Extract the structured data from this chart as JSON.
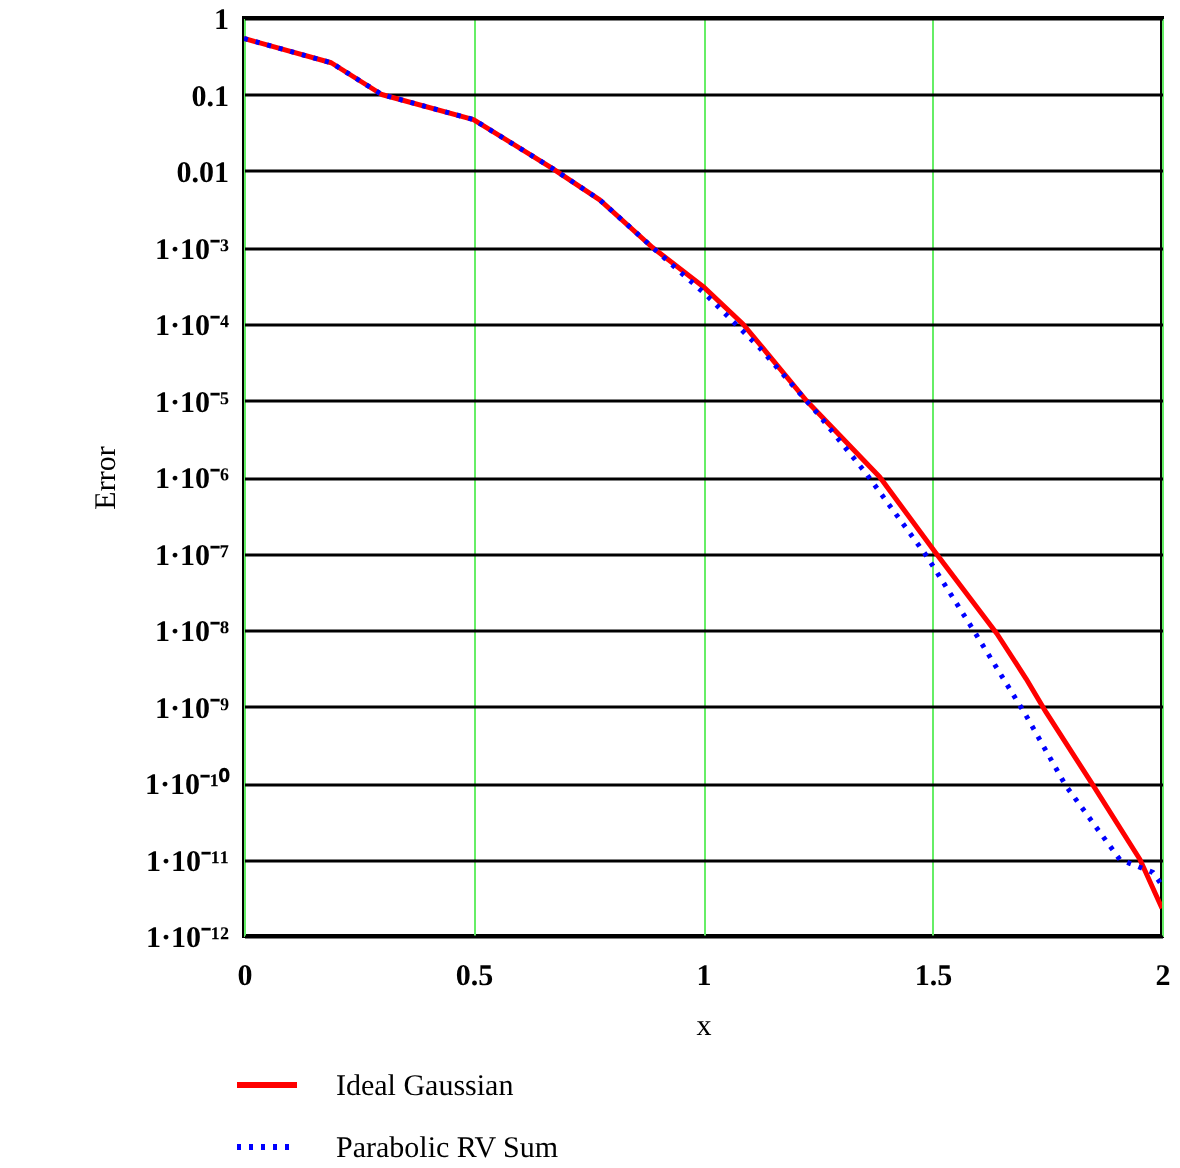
{
  "chart_data": {
    "type": "line",
    "xlabel": "x",
    "ylabel": "Error",
    "xlim": [
      0,
      2
    ],
    "xticks": [
      0,
      0.5,
      1,
      1.5,
      2
    ],
    "ylim": [
      1e-12,
      1
    ],
    "log": "y",
    "yticks": [
      {
        "value": 1e-12,
        "label": "1·10⁻¹²"
      },
      {
        "value": 1e-11,
        "label": "1·10⁻¹¹"
      },
      {
        "value": 1e-10,
        "label": "1·10⁻¹⁰"
      },
      {
        "value": 1e-09,
        "label": "1·10⁻⁹"
      },
      {
        "value": 1e-08,
        "label": "1·10⁻⁸"
      },
      {
        "value": 1e-07,
        "label": "1·10⁻⁷"
      },
      {
        "value": 1e-06,
        "label": "1·10⁻⁶"
      },
      {
        "value": 1e-05,
        "label": "1·10⁻⁵"
      },
      {
        "value": 0.0001,
        "label": "1·10⁻⁴"
      },
      {
        "value": 0.001,
        "label": "1·10⁻³"
      },
      {
        "value": 0.01,
        "label": "0.01"
      },
      {
        "value": 0.1,
        "label": "0.1"
      },
      {
        "value": 1,
        "label": "1"
      }
    ],
    "grid": true,
    "legend": "bottom left",
    "series": [
      {
        "name": "Ideal Gaussian",
        "color": "#ff0000",
        "line_style": "solid",
        "x": [
          0,
          0.19,
          0.3,
          0.5,
          0.67,
          0.775,
          0.89,
          1.0,
          1.087,
          1.225,
          1.385,
          1.508,
          1.64,
          1.704,
          1.748,
          1.85,
          1.952,
          2.0
        ],
        "values": [
          0.54,
          0.26,
          0.1,
          0.047,
          0.011,
          0.0042,
          0.001,
          0.00031,
          0.0001,
          1e-05,
          1e-06,
          1e-07,
          9e-09,
          2.3e-09,
          8.3e-10,
          9.3e-11,
          1e-11,
          2.3e-12
        ]
      },
      {
        "name": "Parabolic RV Sum",
        "color": "#0000ff",
        "line_style": "dotted",
        "x": [
          0,
          0.19,
          0.3,
          0.5,
          0.67,
          0.775,
          0.89,
          1.007,
          1.123,
          1.254,
          1.356,
          1.487,
          1.589,
          1.704,
          1.79,
          1.908,
          1.98,
          2.0
        ],
        "values": [
          0.54,
          0.26,
          0.1,
          0.047,
          0.011,
          0.0042,
          0.001,
          0.00024,
          4.9e-05,
          6.3e-06,
          1.1e-06,
          9.3e-08,
          1e-08,
          7.6e-10,
          9.3e-11,
          1e-11,
          6.8e-12,
          4.6e-12
        ]
      }
    ]
  }
}
